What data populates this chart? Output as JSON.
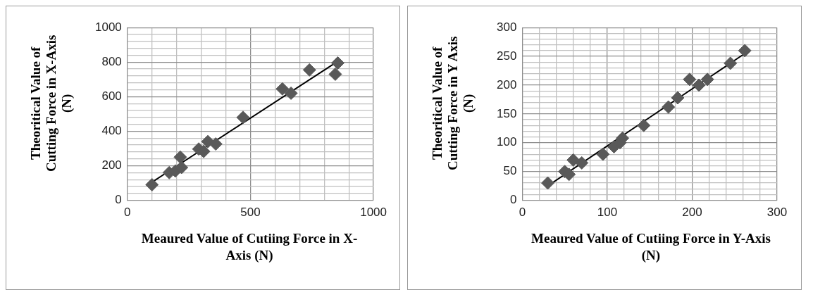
{
  "chart_data": [
    {
      "type": "scatter",
      "xlabel": "Meaured Value of Cutiing Force in X-Axis (N)",
      "ylabel": "Theoritical Value of Cutting Force in X-Axis (N)",
      "grid": true,
      "legend": false,
      "xlim": [
        0,
        1000
      ],
      "xticks": [
        0,
        {
          "value": 100,
          "label": null
        },
        {
          "value": 200,
          "label": null
        },
        {
          "value": 300,
          "label": null
        },
        {
          "value": 400,
          "label": null
        },
        500,
        {
          "value": 600,
          "label": null
        },
        {
          "value": 700,
          "label": null
        },
        {
          "value": 800,
          "label": null
        },
        {
          "value": 900,
          "label": null
        },
        1000
      ],
      "ylim": [
        0,
        1000
      ],
      "yticks": [
        0,
        {
          "value": 40,
          "label": null
        },
        {
          "value": 80,
          "label": null
        },
        {
          "value": 120,
          "label": null
        },
        {
          "value": 160,
          "label": null
        },
        200,
        {
          "value": 240,
          "label": null
        },
        {
          "value": 280,
          "label": null
        },
        {
          "value": 320,
          "label": null
        },
        {
          "value": 360,
          "label": null
        },
        400,
        {
          "value": 440,
          "label": null
        },
        {
          "value": 480,
          "label": null
        },
        {
          "value": 520,
          "label": null
        },
        {
          "value": 560,
          "label": null
        },
        600,
        {
          "value": 640,
          "label": null
        },
        {
          "value": 680,
          "label": null
        },
        {
          "value": 720,
          "label": null
        },
        {
          "value": 760,
          "label": null
        },
        800,
        {
          "value": 840,
          "label": null
        },
        {
          "value": 880,
          "label": null
        },
        {
          "value": 920,
          "label": null
        },
        {
          "value": 960,
          "label": null
        },
        1000
      ],
      "series": [
        {
          "marker": "diamond",
          "color": "#595959",
          "x": [
            100,
            170,
            195,
            215,
            220,
            290,
            310,
            327,
            359,
            470,
            630,
            665,
            740,
            845,
            855
          ],
          "values": [
            90,
            160,
            170,
            250,
            190,
            297,
            283,
            340,
            326,
            480,
            645,
            620,
            755,
            730,
            795
          ]
        },
        {
          "type": "line",
          "marker": "none",
          "color": "#000000",
          "x": [
            100,
            855
          ],
          "values": [
            105,
            805
          ]
        }
      ]
    },
    {
      "type": "scatter",
      "xlabel": "Meaured Value of Cutiing Force in Y-Axis (N)",
      "ylabel": "Theoritical Value of Cutting Force in Y Axis (N)",
      "grid": true,
      "legend": false,
      "xlim": [
        0,
        300
      ],
      "xticks": [
        0,
        {
          "value": 20,
          "label": null
        },
        {
          "value": 40,
          "label": null
        },
        {
          "value": 60,
          "label": null
        },
        {
          "value": 80,
          "label": null
        },
        100,
        {
          "value": 120,
          "label": null
        },
        {
          "value": 140,
          "label": null
        },
        {
          "value": 160,
          "label": null
        },
        {
          "value": 180,
          "label": null
        },
        200,
        {
          "value": 220,
          "label": null
        },
        {
          "value": 240,
          "label": null
        },
        {
          "value": 260,
          "label": null
        },
        {
          "value": 280,
          "label": null
        },
        300
      ],
      "ylim": [
        0,
        300
      ],
      "yticks": [
        0,
        {
          "value": 10,
          "label": null
        },
        {
          "value": 20,
          "label": null
        },
        {
          "value": 30,
          "label": null
        },
        {
          "value": 40,
          "label": null
        },
        50,
        {
          "value": 60,
          "label": null
        },
        {
          "value": 70,
          "label": null
        },
        {
          "value": 80,
          "label": null
        },
        {
          "value": 90,
          "label": null
        },
        100,
        {
          "value": 110,
          "label": null
        },
        {
          "value": 120,
          "label": null
        },
        {
          "value": 130,
          "label": null
        },
        {
          "value": 140,
          "label": null
        },
        150,
        {
          "value": 160,
          "label": null
        },
        {
          "value": 170,
          "label": null
        },
        {
          "value": 180,
          "label": null
        },
        {
          "value": 190,
          "label": null
        },
        200,
        {
          "value": 210,
          "label": null
        },
        {
          "value": 220,
          "label": null
        },
        {
          "value": 230,
          "label": null
        },
        {
          "value": 240,
          "label": null
        },
        250,
        {
          "value": 260,
          "label": null
        },
        {
          "value": 270,
          "label": null
        },
        {
          "value": 280,
          "label": null
        },
        {
          "value": 290,
          "label": null
        },
        300
      ],
      "series": [
        {
          "marker": "diamond",
          "color": "#595959",
          "x": [
            30,
            50,
            55,
            60,
            70,
            95,
            108,
            115,
            118,
            143,
            172,
            183,
            197,
            208,
            218,
            245,
            262
          ],
          "values": [
            30,
            50,
            45,
            70,
            65,
            80,
            93,
            100,
            108,
            130,
            162,
            178,
            210,
            200,
            210,
            238,
            260
          ]
        },
        {
          "type": "line",
          "marker": "none",
          "color": "#000000",
          "x": [
            30,
            262
          ],
          "values": [
            25,
            255
          ]
        }
      ]
    }
  ]
}
